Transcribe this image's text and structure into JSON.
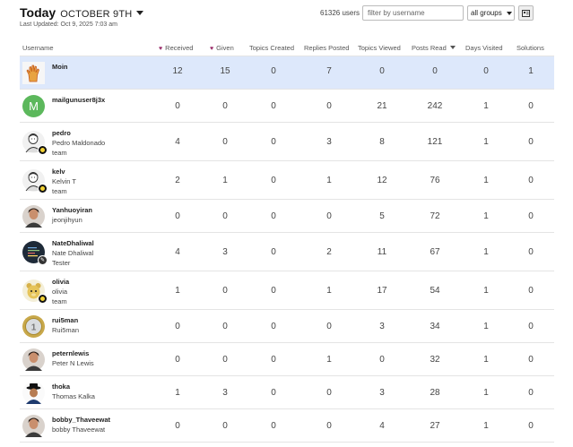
{
  "header": {
    "title_today": "Today",
    "title_date": "OCTOBER 9TH",
    "last_updated": "Last Updated: Oct 9, 2025 7:03 am"
  },
  "controls": {
    "users_count": "61326 users",
    "filter_placeholder": "filter by username",
    "groups_select": "all groups",
    "view_toggle_icon": "card-view-icon"
  },
  "colors": {
    "highlight_row": "#dde8fb",
    "heart": "#9b2d6a",
    "text": "#222222",
    "muted": "#555555",
    "border": "#e4e4e4"
  },
  "columns": {
    "username": "Username",
    "received": "Received",
    "given": "Given",
    "topics_created": "Topics Created",
    "replies_posted": "Replies Posted",
    "topics_viewed": "Topics Viewed",
    "posts_read": "Posts Read",
    "days_visited": "Days Visited",
    "solutions": "Solutions"
  },
  "rows": [
    {
      "username": "Moin",
      "name": "",
      "title": "",
      "received": "12",
      "given": "15",
      "topics_created": "0",
      "replies_posted": "7",
      "topics_viewed": "0",
      "posts_read": "0",
      "days_visited": "0",
      "solutions": "1",
      "avatar_icon": "hand-avatar-icon",
      "highlight": true
    },
    {
      "username": "mailgunuser8j3x",
      "name": "",
      "title": "",
      "received": "0",
      "given": "0",
      "topics_created": "0",
      "replies_posted": "0",
      "topics_viewed": "21",
      "posts_read": "242",
      "days_visited": "1",
      "solutions": "0",
      "avatar_icon": "letter-avatar-icon",
      "avatar_letter": "M",
      "avatar_color": "#5cb85c"
    },
    {
      "username": "pedro",
      "name": "Pedro Maldonado",
      "title": "team",
      "received": "4",
      "given": "0",
      "topics_created": "0",
      "replies_posted": "3",
      "topics_viewed": "8",
      "posts_read": "121",
      "days_visited": "1",
      "solutions": "0",
      "avatar_icon": "sketch-portrait-avatar-icon"
    },
    {
      "username": "kelv",
      "name": "Kelvin T",
      "title": "team",
      "received": "2",
      "given": "1",
      "topics_created": "0",
      "replies_posted": "1",
      "topics_viewed": "12",
      "posts_read": "76",
      "days_visited": "1",
      "solutions": "0",
      "avatar_icon": "sketch-portrait-avatar-icon"
    },
    {
      "username": "Yanhuoyiran",
      "name": "jeonjihyun",
      "title": "",
      "received": "0",
      "given": "0",
      "topics_created": "0",
      "replies_posted": "0",
      "topics_viewed": "5",
      "posts_read": "72",
      "days_visited": "1",
      "solutions": "0",
      "avatar_icon": "photo-avatar-icon"
    },
    {
      "username": "NateDhaliwal",
      "name": "Nate Dhaliwal",
      "title": "Tester",
      "received": "4",
      "given": "3",
      "topics_created": "0",
      "replies_posted": "2",
      "topics_viewed": "11",
      "posts_read": "67",
      "days_visited": "1",
      "solutions": "0",
      "avatar_icon": "code-avatar-icon"
    },
    {
      "username": "olivia",
      "name": "olivia",
      "title": "team",
      "received": "1",
      "given": "0",
      "topics_created": "0",
      "replies_posted": "1",
      "topics_viewed": "17",
      "posts_read": "54",
      "days_visited": "1",
      "solutions": "0",
      "avatar_icon": "plush-toy-avatar-icon"
    },
    {
      "username": "rui5man",
      "name": "Rui5man",
      "title": "",
      "received": "0",
      "given": "0",
      "topics_created": "0",
      "replies_posted": "0",
      "topics_viewed": "3",
      "posts_read": "34",
      "days_visited": "1",
      "solutions": "0",
      "avatar_icon": "coin-avatar-icon"
    },
    {
      "username": "peternlewis",
      "name": "Peter N Lewis",
      "title": "",
      "received": "0",
      "given": "0",
      "topics_created": "0",
      "replies_posted": "1",
      "topics_viewed": "0",
      "posts_read": "32",
      "days_visited": "1",
      "solutions": "0",
      "avatar_icon": "photo-avatar-icon"
    },
    {
      "username": "thoka",
      "name": "Thomas Kalka",
      "title": "",
      "received": "1",
      "given": "3",
      "topics_created": "0",
      "replies_posted": "0",
      "topics_viewed": "3",
      "posts_read": "28",
      "days_visited": "1",
      "solutions": "0",
      "avatar_icon": "hat-portrait-avatar-icon"
    },
    {
      "username": "bobby_Thaveewat",
      "name": "bobby Thaveewat",
      "title": "",
      "received": "0",
      "given": "0",
      "topics_created": "0",
      "replies_posted": "0",
      "topics_viewed": "4",
      "posts_read": "27",
      "days_visited": "1",
      "solutions": "0",
      "avatar_icon": "photo-avatar-icon"
    }
  ]
}
